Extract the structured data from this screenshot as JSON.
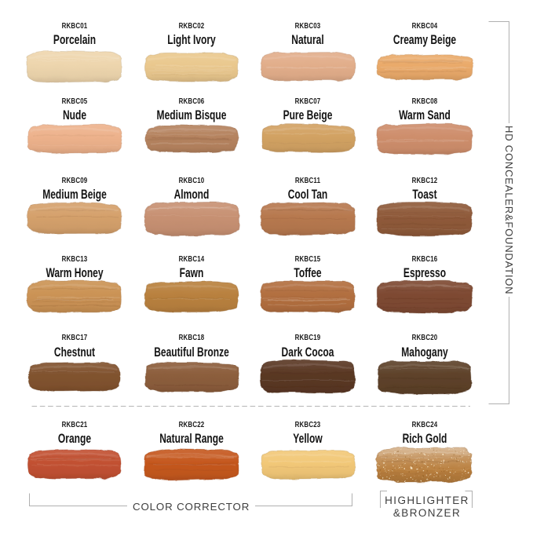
{
  "page": {
    "background": "#ffffff"
  },
  "groups": {
    "hd_concealer_foundation": {
      "label": "HD CONCEALER&FOUNDATION"
    },
    "color_corrector": {
      "label": "COLOR CORRECTOR"
    },
    "highlighter_bronzer": {
      "label_line1": "HIGHLIGHTER",
      "label_line2": "&BRONZER"
    }
  },
  "colors": {
    "text": "#1b1b1b",
    "group_text": "#3d3d3d",
    "bracket_line": "#b0b0b0"
  },
  "swatches": [
    {
      "code": "RKBC01",
      "name": "Porcelain",
      "color": "#eed6ae",
      "finish": "matte",
      "group": "HD CONCEALER&FOUNDATION"
    },
    {
      "code": "RKBC02",
      "name": "Light Ivory",
      "color": "#eac88e",
      "finish": "streaky",
      "group": "HD CONCEALER&FOUNDATION"
    },
    {
      "code": "RKBC03",
      "name": "Natural",
      "color": "#e2ae8b",
      "finish": "matte",
      "group": "HD CONCEALER&FOUNDATION"
    },
    {
      "code": "RKBC04",
      "name": "Creamy Beige",
      "color": "#eaaa6a",
      "finish": "streaky",
      "group": "HD CONCEALER&FOUNDATION"
    },
    {
      "code": "RKBC05",
      "name": "Nude",
      "color": "#edb28c",
      "finish": "matte",
      "group": "HD CONCEALER&FOUNDATION"
    },
    {
      "code": "RKBC06",
      "name": "Medium Bisque",
      "color": "#b5835f",
      "finish": "streaky",
      "group": "HD CONCEALER&FOUNDATION"
    },
    {
      "code": "RKBC07",
      "name": "Pure Beige",
      "color": "#d2a263",
      "finish": "matte",
      "group": "HD CONCEALER&FOUNDATION"
    },
    {
      "code": "RKBC08",
      "name": "Warm Sand",
      "color": "#ce8e6c",
      "finish": "matte",
      "group": "HD CONCEALER&FOUNDATION"
    },
    {
      "code": "RKBC09",
      "name": "Medium Beige",
      "color": "#d5a16c",
      "finish": "matte",
      "group": "HD CONCEALER&FOUNDATION"
    },
    {
      "code": "RKBC10",
      "name": "Almond",
      "color": "#c79173",
      "finish": "matte",
      "group": "HD CONCEALER&FOUNDATION"
    },
    {
      "code": "RKBC11",
      "name": "Cool Tan",
      "color": "#b7794f",
      "finish": "matte",
      "group": "HD CONCEALER&FOUNDATION"
    },
    {
      "code": "RKBC12",
      "name": "Toast",
      "color": "#8f5a3a",
      "finish": "streaky",
      "group": "HD CONCEALER&FOUNDATION"
    },
    {
      "code": "RKBC13",
      "name": "Warm Honey",
      "color": "#cb9355",
      "finish": "streaky",
      "group": "HD CONCEALER&FOUNDATION"
    },
    {
      "code": "RKBC14",
      "name": "Fawn",
      "color": "#b9813f",
      "finish": "matte",
      "group": "HD CONCEALER&FOUNDATION"
    },
    {
      "code": "RKBC15",
      "name": "Toffee",
      "color": "#b26f40",
      "finish": "streaky",
      "group": "HD CONCEALER&FOUNDATION"
    },
    {
      "code": "RKBC16",
      "name": "Espresso",
      "color": "#7e4a33",
      "finish": "streaky",
      "group": "HD CONCEALER&FOUNDATION"
    },
    {
      "code": "RKBC17",
      "name": "Chestnut",
      "color": "#81532f",
      "finish": "matte",
      "group": "HD CONCEALER&FOUNDATION"
    },
    {
      "code": "RKBC18",
      "name": "Beautiful Bronze",
      "color": "#8c5e3c",
      "finish": "matte",
      "group": "HD CONCEALER&FOUNDATION"
    },
    {
      "code": "RKBC19",
      "name": "Dark Cocoa",
      "color": "#5a3824",
      "finish": "streaky",
      "group": "HD CONCEALER&FOUNDATION"
    },
    {
      "code": "RKBC20",
      "name": "Mahogany",
      "color": "#5e422a",
      "finish": "streaky",
      "group": "HD CONCEALER&FOUNDATION"
    },
    {
      "code": "RKBC21",
      "name": "Orange",
      "color": "#c25132",
      "finish": "streaky",
      "group": "COLOR CORRECTOR"
    },
    {
      "code": "RKBC22",
      "name": "Natural Range",
      "color": "#c5581f",
      "finish": "streaky",
      "group": "COLOR CORRECTOR"
    },
    {
      "code": "RKBC23",
      "name": "Yellow",
      "color": "#f2c878",
      "finish": "matte",
      "group": "COLOR CORRECTOR"
    },
    {
      "code": "RKBC24",
      "name": "Rich Gold",
      "color": "#b97f3e",
      "finish": "shimmer",
      "group": "HIGHLIGHTER&BRONZER"
    }
  ],
  "chart_data": {
    "type": "table",
    "title": "",
    "columns": [
      "code",
      "shade_name",
      "color_hex",
      "finish",
      "group"
    ],
    "rows": [
      [
        "RKBC01",
        "Porcelain",
        "#eed6ae",
        "matte",
        "HD CONCEALER&FOUNDATION"
      ],
      [
        "RKBC02",
        "Light Ivory",
        "#eac88e",
        "streaky",
        "HD CONCEALER&FOUNDATION"
      ],
      [
        "RKBC03",
        "Natural",
        "#e2ae8b",
        "matte",
        "HD CONCEALER&FOUNDATION"
      ],
      [
        "RKBC04",
        "Creamy Beige",
        "#eaaa6a",
        "streaky",
        "HD CONCEALER&FOUNDATION"
      ],
      [
        "RKBC05",
        "Nude",
        "#edb28c",
        "matte",
        "HD CONCEALER&FOUNDATION"
      ],
      [
        "RKBC06",
        "Medium Bisque",
        "#b5835f",
        "streaky",
        "HD CONCEALER&FOUNDATION"
      ],
      [
        "RKBC07",
        "Pure Beige",
        "#d2a263",
        "matte",
        "HD CONCEALER&FOUNDATION"
      ],
      [
        "RKBC08",
        "Warm Sand",
        "#ce8e6c",
        "matte",
        "HD CONCEALER&FOUNDATION"
      ],
      [
        "RKBC09",
        "Medium Beige",
        "#d5a16c",
        "matte",
        "HD CONCEALER&FOUNDATION"
      ],
      [
        "RKBC10",
        "Almond",
        "#c79173",
        "matte",
        "HD CONCEALER&FOUNDATION"
      ],
      [
        "RKBC11",
        "Cool Tan",
        "#b7794f",
        "matte",
        "HD CONCEALER&FOUNDATION"
      ],
      [
        "RKBC12",
        "Toast",
        "#8f5a3a",
        "streaky",
        "HD CONCEALER&FOUNDATION"
      ],
      [
        "RKBC13",
        "Warm Honey",
        "#cb9355",
        "streaky",
        "HD CONCEALER&FOUNDATION"
      ],
      [
        "RKBC14",
        "Fawn",
        "#b9813f",
        "matte",
        "HD CONCEALER&FOUNDATION"
      ],
      [
        "RKBC15",
        "Toffee",
        "#b26f40",
        "streaky",
        "HD CONCEALER&FOUNDATION"
      ],
      [
        "RKBC16",
        "Espresso",
        "#7e4a33",
        "streaky",
        "HD CONCEALER&FOUNDATION"
      ],
      [
        "RKBC17",
        "Chestnut",
        "#81532f",
        "matte",
        "HD CONCEALER&FOUNDATION"
      ],
      [
        "RKBC18",
        "Beautiful Bronze",
        "#8c5e3c",
        "matte",
        "HD CONCEALER&FOUNDATION"
      ],
      [
        "RKBC19",
        "Dark Cocoa",
        "#5a3824",
        "streaky",
        "HD CONCEALER&FOUNDATION"
      ],
      [
        "RKBC20",
        "Mahogany",
        "#5e422a",
        "streaky",
        "HD CONCEALER&FOUNDATION"
      ],
      [
        "RKBC21",
        "Orange",
        "#c25132",
        "streaky",
        "COLOR CORRECTOR"
      ],
      [
        "RKBC22",
        "Natural Range",
        "#c5581f",
        "streaky",
        "COLOR CORRECTOR"
      ],
      [
        "RKBC23",
        "Yellow",
        "#f2c878",
        "matte",
        "COLOR CORRECTOR"
      ],
      [
        "RKBC24",
        "Rich Gold",
        "#b97f3e",
        "shimmer",
        "HIGHLIGHTER&BRONZER"
      ]
    ]
  }
}
